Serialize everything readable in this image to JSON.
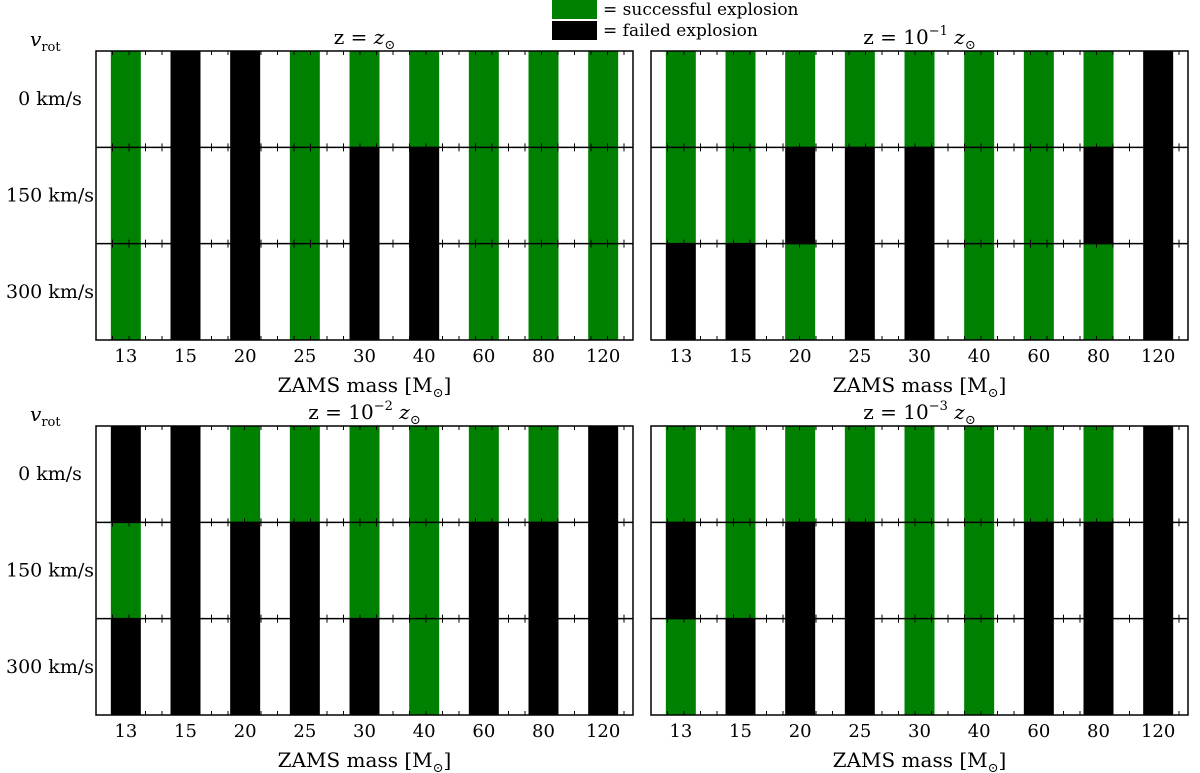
{
  "legend": {
    "items": [
      {
        "label": "= successful explosion",
        "color": "#008000"
      },
      {
        "label": "= failed explosion",
        "color": "#000000"
      }
    ]
  },
  "colors": {
    "success": "#008000",
    "fail": "#000000",
    "background": "#ffffff"
  },
  "shared": {
    "masses": [
      "13",
      "15",
      "20",
      "25",
      "30",
      "40",
      "60",
      "80",
      "120"
    ],
    "rotations": [
      "0 km/s",
      "150 km/s",
      "300 km/s"
    ],
    "ylabel_main": "v",
    "ylabel_sub": "rot",
    "xlabel_main": "ZAMS mass [M",
    "xlabel_sub": "⊙",
    "xlabel_end": "]"
  },
  "chart_data": [
    {
      "type": "heatmap",
      "title_prefix": "z = ",
      "title_power": "",
      "title_var": "z",
      "title_sub": "⊙",
      "categories": [
        "13",
        "15",
        "20",
        "25",
        "30",
        "40",
        "60",
        "80",
        "120"
      ],
      "rows": [
        "0 km/s",
        "150 km/s",
        "300 km/s"
      ],
      "grid": [
        [
          "success",
          "fail",
          "fail",
          "success",
          "success",
          "success",
          "success",
          "success",
          "success"
        ],
        [
          "success",
          "fail",
          "fail",
          "success",
          "fail",
          "fail",
          "success",
          "success",
          "success"
        ],
        [
          "success",
          "fail",
          "fail",
          "success",
          "fail",
          "fail",
          "success",
          "success",
          "success"
        ]
      ]
    },
    {
      "type": "heatmap",
      "title_prefix": "z = 10",
      "title_power": "−1",
      "title_var": "z",
      "title_sub": "⊙",
      "categories": [
        "13",
        "15",
        "20",
        "25",
        "30",
        "40",
        "60",
        "80",
        "120"
      ],
      "rows": [
        "0 km/s",
        "150 km/s",
        "300 km/s"
      ],
      "grid": [
        [
          "success",
          "success",
          "success",
          "success",
          "success",
          "success",
          "success",
          "success",
          "fail"
        ],
        [
          "success",
          "success",
          "fail",
          "fail",
          "fail",
          "success",
          "success",
          "fail",
          "fail"
        ],
        [
          "fail",
          "fail",
          "success",
          "fail",
          "fail",
          "success",
          "success",
          "success",
          "fail"
        ]
      ]
    },
    {
      "type": "heatmap",
      "title_prefix": "z = 10",
      "title_power": "−2",
      "title_var": "z",
      "title_sub": "⊙",
      "categories": [
        "13",
        "15",
        "20",
        "25",
        "30",
        "40",
        "60",
        "80",
        "120"
      ],
      "rows": [
        "0 km/s",
        "150 km/s",
        "300 km/s"
      ],
      "grid": [
        [
          "fail",
          "fail",
          "success",
          "success",
          "success",
          "success",
          "success",
          "success",
          "fail"
        ],
        [
          "success",
          "fail",
          "fail",
          "fail",
          "success",
          "success",
          "fail",
          "fail",
          "fail"
        ],
        [
          "fail",
          "fail",
          "fail",
          "fail",
          "fail",
          "success",
          "fail",
          "fail",
          "fail"
        ]
      ]
    },
    {
      "type": "heatmap",
      "title_prefix": "z = 10",
      "title_power": "−3",
      "title_var": "z",
      "title_sub": "⊙",
      "categories": [
        "13",
        "15",
        "20",
        "25",
        "30",
        "40",
        "60",
        "80",
        "120"
      ],
      "rows": [
        "0 km/s",
        "150 km/s",
        "300 km/s"
      ],
      "grid": [
        [
          "success",
          "success",
          "success",
          "success",
          "success",
          "success",
          "success",
          "success",
          "fail"
        ],
        [
          "fail",
          "success",
          "fail",
          "fail",
          "success",
          "success",
          "fail",
          "fail",
          "fail"
        ],
        [
          "success",
          "fail",
          "fail",
          "fail",
          "success",
          "success",
          "fail",
          "fail",
          "fail"
        ]
      ]
    }
  ]
}
